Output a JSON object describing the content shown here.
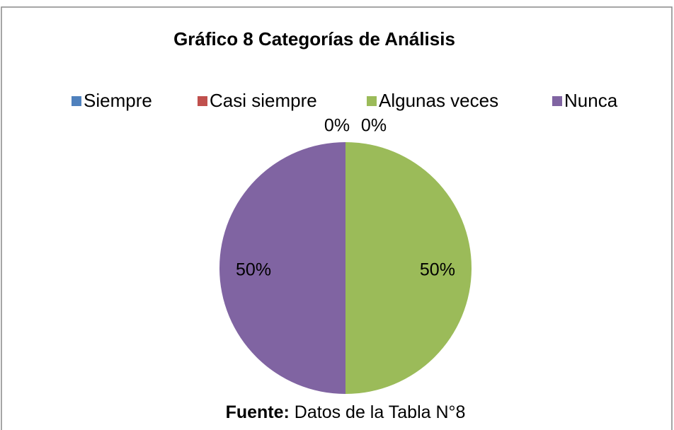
{
  "chart_data": {
    "type": "pie",
    "title": "Gráfico 8 Categorías de Análisis",
    "categories": [
      "Siempre",
      "Casi siempre",
      "Algunas veces",
      "Nunca"
    ],
    "values": [
      0,
      0,
      50,
      50
    ],
    "value_labels": [
      "0%",
      "0%",
      "50%",
      "50%"
    ],
    "colors": [
      "#4f81bd",
      "#c0504d",
      "#9bbb59",
      "#8064a2"
    ],
    "legend": "top",
    "source": {
      "label": "Fuente:",
      "text": "Datos de la Tabla N°8"
    }
  }
}
